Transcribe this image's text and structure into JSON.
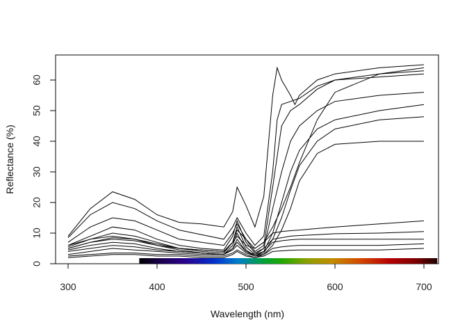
{
  "chart_data": {
    "type": "line",
    "title": "",
    "xlabel": "Wavelength (nm)",
    "ylabel": "Reflectance (%)",
    "xlim": [
      300,
      700
    ],
    "ylim": [
      0,
      65
    ],
    "x_ticks": [
      300,
      400,
      500,
      600,
      700
    ],
    "y_ticks": [
      0,
      10,
      20,
      30,
      40,
      50,
      60
    ],
    "grid": false,
    "legend": "none",
    "spectrum_bar": {
      "x_range": [
        380,
        715
      ]
    },
    "series": [
      {
        "x": [
          300,
          325,
          350,
          375,
          400,
          425,
          450,
          475,
          485,
          490,
          500,
          510,
          520,
          530,
          535,
          540,
          550,
          555,
          560,
          580,
          600,
          650,
          700
        ],
        "y": [
          9,
          18,
          23.5,
          21,
          16,
          13.5,
          13,
          12,
          17,
          25,
          19,
          12,
          22,
          55,
          64,
          60,
          55,
          52,
          55,
          60,
          62,
          64,
          65
        ],
        "color": "#000000"
      },
      {
        "x": [
          300,
          325,
          350,
          375,
          400,
          425,
          450,
          475,
          485,
          490,
          500,
          510,
          520,
          530,
          535,
          540,
          550,
          560,
          580,
          600,
          650,
          700
        ],
        "y": [
          8.5,
          16,
          20,
          18,
          14,
          11,
          9.5,
          8,
          12,
          15,
          10,
          6,
          9,
          30,
          47,
          52,
          53,
          54,
          58,
          60,
          61,
          62
        ],
        "color": "#000000"
      },
      {
        "x": [
          300,
          325,
          350,
          375,
          400,
          425,
          450,
          475,
          485,
          490,
          500,
          510,
          520,
          530,
          540,
          550,
          560,
          580,
          600,
          650,
          700
        ],
        "y": [
          6,
          9,
          12,
          11,
          8,
          6,
          5,
          4.5,
          9,
          14,
          7,
          3.5,
          5,
          18,
          30,
          40,
          45,
          50,
          53,
          55,
          56
        ],
        "color": "#000000"
      },
      {
        "x": [
          300,
          325,
          350,
          375,
          400,
          425,
          450,
          475,
          485,
          490,
          500,
          510,
          520,
          530,
          540,
          550,
          560,
          580,
          600,
          650,
          700
        ],
        "y": [
          5.5,
          8,
          10,
          9,
          7,
          5,
          4,
          3.5,
          7,
          12,
          5.5,
          3,
          4,
          10,
          20,
          30,
          37,
          44,
          47,
          50,
          52
        ],
        "color": "#000000"
      },
      {
        "x": [
          300,
          325,
          350,
          375,
          400,
          425,
          450,
          475,
          485,
          490,
          500,
          510,
          520,
          530,
          540,
          550,
          560,
          580,
          600,
          650,
          700
        ],
        "y": [
          5,
          7,
          8.5,
          8,
          6,
          4.5,
          3.5,
          3,
          6,
          10,
          4.5,
          2.5,
          3.5,
          8,
          15,
          24,
          32,
          40,
          44,
          47,
          48
        ],
        "color": "#000000"
      },
      {
        "x": [
          300,
          325,
          350,
          375,
          400,
          425,
          450,
          475,
          485,
          490,
          500,
          510,
          520,
          530,
          540,
          550,
          560,
          580,
          600,
          650,
          700
        ],
        "y": [
          4.5,
          6,
          7,
          6.5,
          5,
          4,
          3.5,
          3,
          5,
          8,
          4,
          2.5,
          3,
          6,
          11,
          18,
          27,
          36,
          39,
          40,
          40
        ],
        "color": "#000000"
      },
      {
        "x": [
          300,
          325,
          350,
          375,
          400,
          425,
          450,
          475,
          485,
          490,
          500,
          510,
          520,
          530,
          540,
          550,
          560,
          580,
          600,
          650,
          700
        ],
        "y": [
          6,
          8,
          9,
          8,
          6.5,
          5,
          4.5,
          4,
          7,
          11,
          8,
          5,
          7,
          12,
          18,
          25,
          33,
          47,
          56,
          62,
          64
        ],
        "color": "#000000"
      },
      {
        "x": [
          300,
          325,
          350,
          375,
          400,
          425,
          450,
          475,
          485,
          490,
          500,
          510,
          520,
          530,
          540,
          550,
          560,
          580,
          600,
          650,
          700
        ],
        "y": [
          7,
          12,
          15,
          14,
          11,
          8,
          7,
          6,
          10,
          13,
          8,
          4,
          6,
          25,
          45,
          50,
          52,
          57,
          60,
          62,
          63
        ],
        "color": "#000000"
      },
      {
        "x": [
          300,
          325,
          350,
          375,
          400,
          425,
          450,
          475,
          485,
          490,
          500,
          510,
          520,
          530,
          540,
          550,
          560,
          580,
          600,
          650,
          700
        ],
        "y": [
          5,
          7,
          8,
          7.5,
          6,
          5,
          4.5,
          4,
          7,
          9,
          6,
          5,
          7,
          10,
          10.5,
          10.8,
          11,
          11.5,
          12,
          13,
          14
        ],
        "color": "#000000"
      },
      {
        "x": [
          300,
          325,
          350,
          375,
          400,
          425,
          450,
          475,
          485,
          490,
          500,
          510,
          520,
          530,
          540,
          550,
          560,
          580,
          600,
          650,
          700
        ],
        "y": [
          4,
          5,
          6,
          5.5,
          4.5,
          4,
          3.5,
          3,
          5,
          7,
          4,
          3,
          5,
          8,
          8.5,
          9,
          9.2,
          9.5,
          9.8,
          10,
          10.5
        ],
        "color": "#000000"
      },
      {
        "x": [
          300,
          325,
          350,
          375,
          400,
          425,
          450,
          475,
          485,
          490,
          500,
          510,
          520,
          530,
          540,
          550,
          560,
          580,
          600,
          650,
          700
        ],
        "y": [
          3,
          4,
          5,
          4.5,
          4,
          3.5,
          3,
          3,
          4.5,
          6,
          3.5,
          2.5,
          4,
          7,
          7.5,
          7.8,
          8,
          8,
          8,
          8,
          8
        ],
        "color": "#000000"
      },
      {
        "x": [
          300,
          325,
          350,
          375,
          400,
          425,
          450,
          475,
          485,
          490,
          500,
          510,
          520,
          530,
          540,
          550,
          560,
          580,
          600,
          650,
          700
        ],
        "y": [
          2.5,
          3,
          3.5,
          3.5,
          3,
          3,
          2.5,
          2.5,
          3.5,
          4.5,
          3,
          2,
          3,
          5,
          5.5,
          5.8,
          6,
          6,
          6,
          6,
          6.5
        ],
        "color": "#000000"
      },
      {
        "x": [
          300,
          325,
          350,
          375,
          400,
          425,
          450,
          475,
          485,
          490,
          500,
          510,
          520,
          530,
          540,
          550,
          560,
          580,
          600,
          650,
          700
        ],
        "y": [
          2,
          2.5,
          3,
          3,
          2.5,
          2.5,
          2,
          2,
          3,
          4,
          2.5,
          2,
          2.5,
          4,
          4.2,
          4.4,
          4.5,
          4.5,
          4.5,
          4.5,
          5
        ],
        "color": "#000000"
      }
    ]
  }
}
